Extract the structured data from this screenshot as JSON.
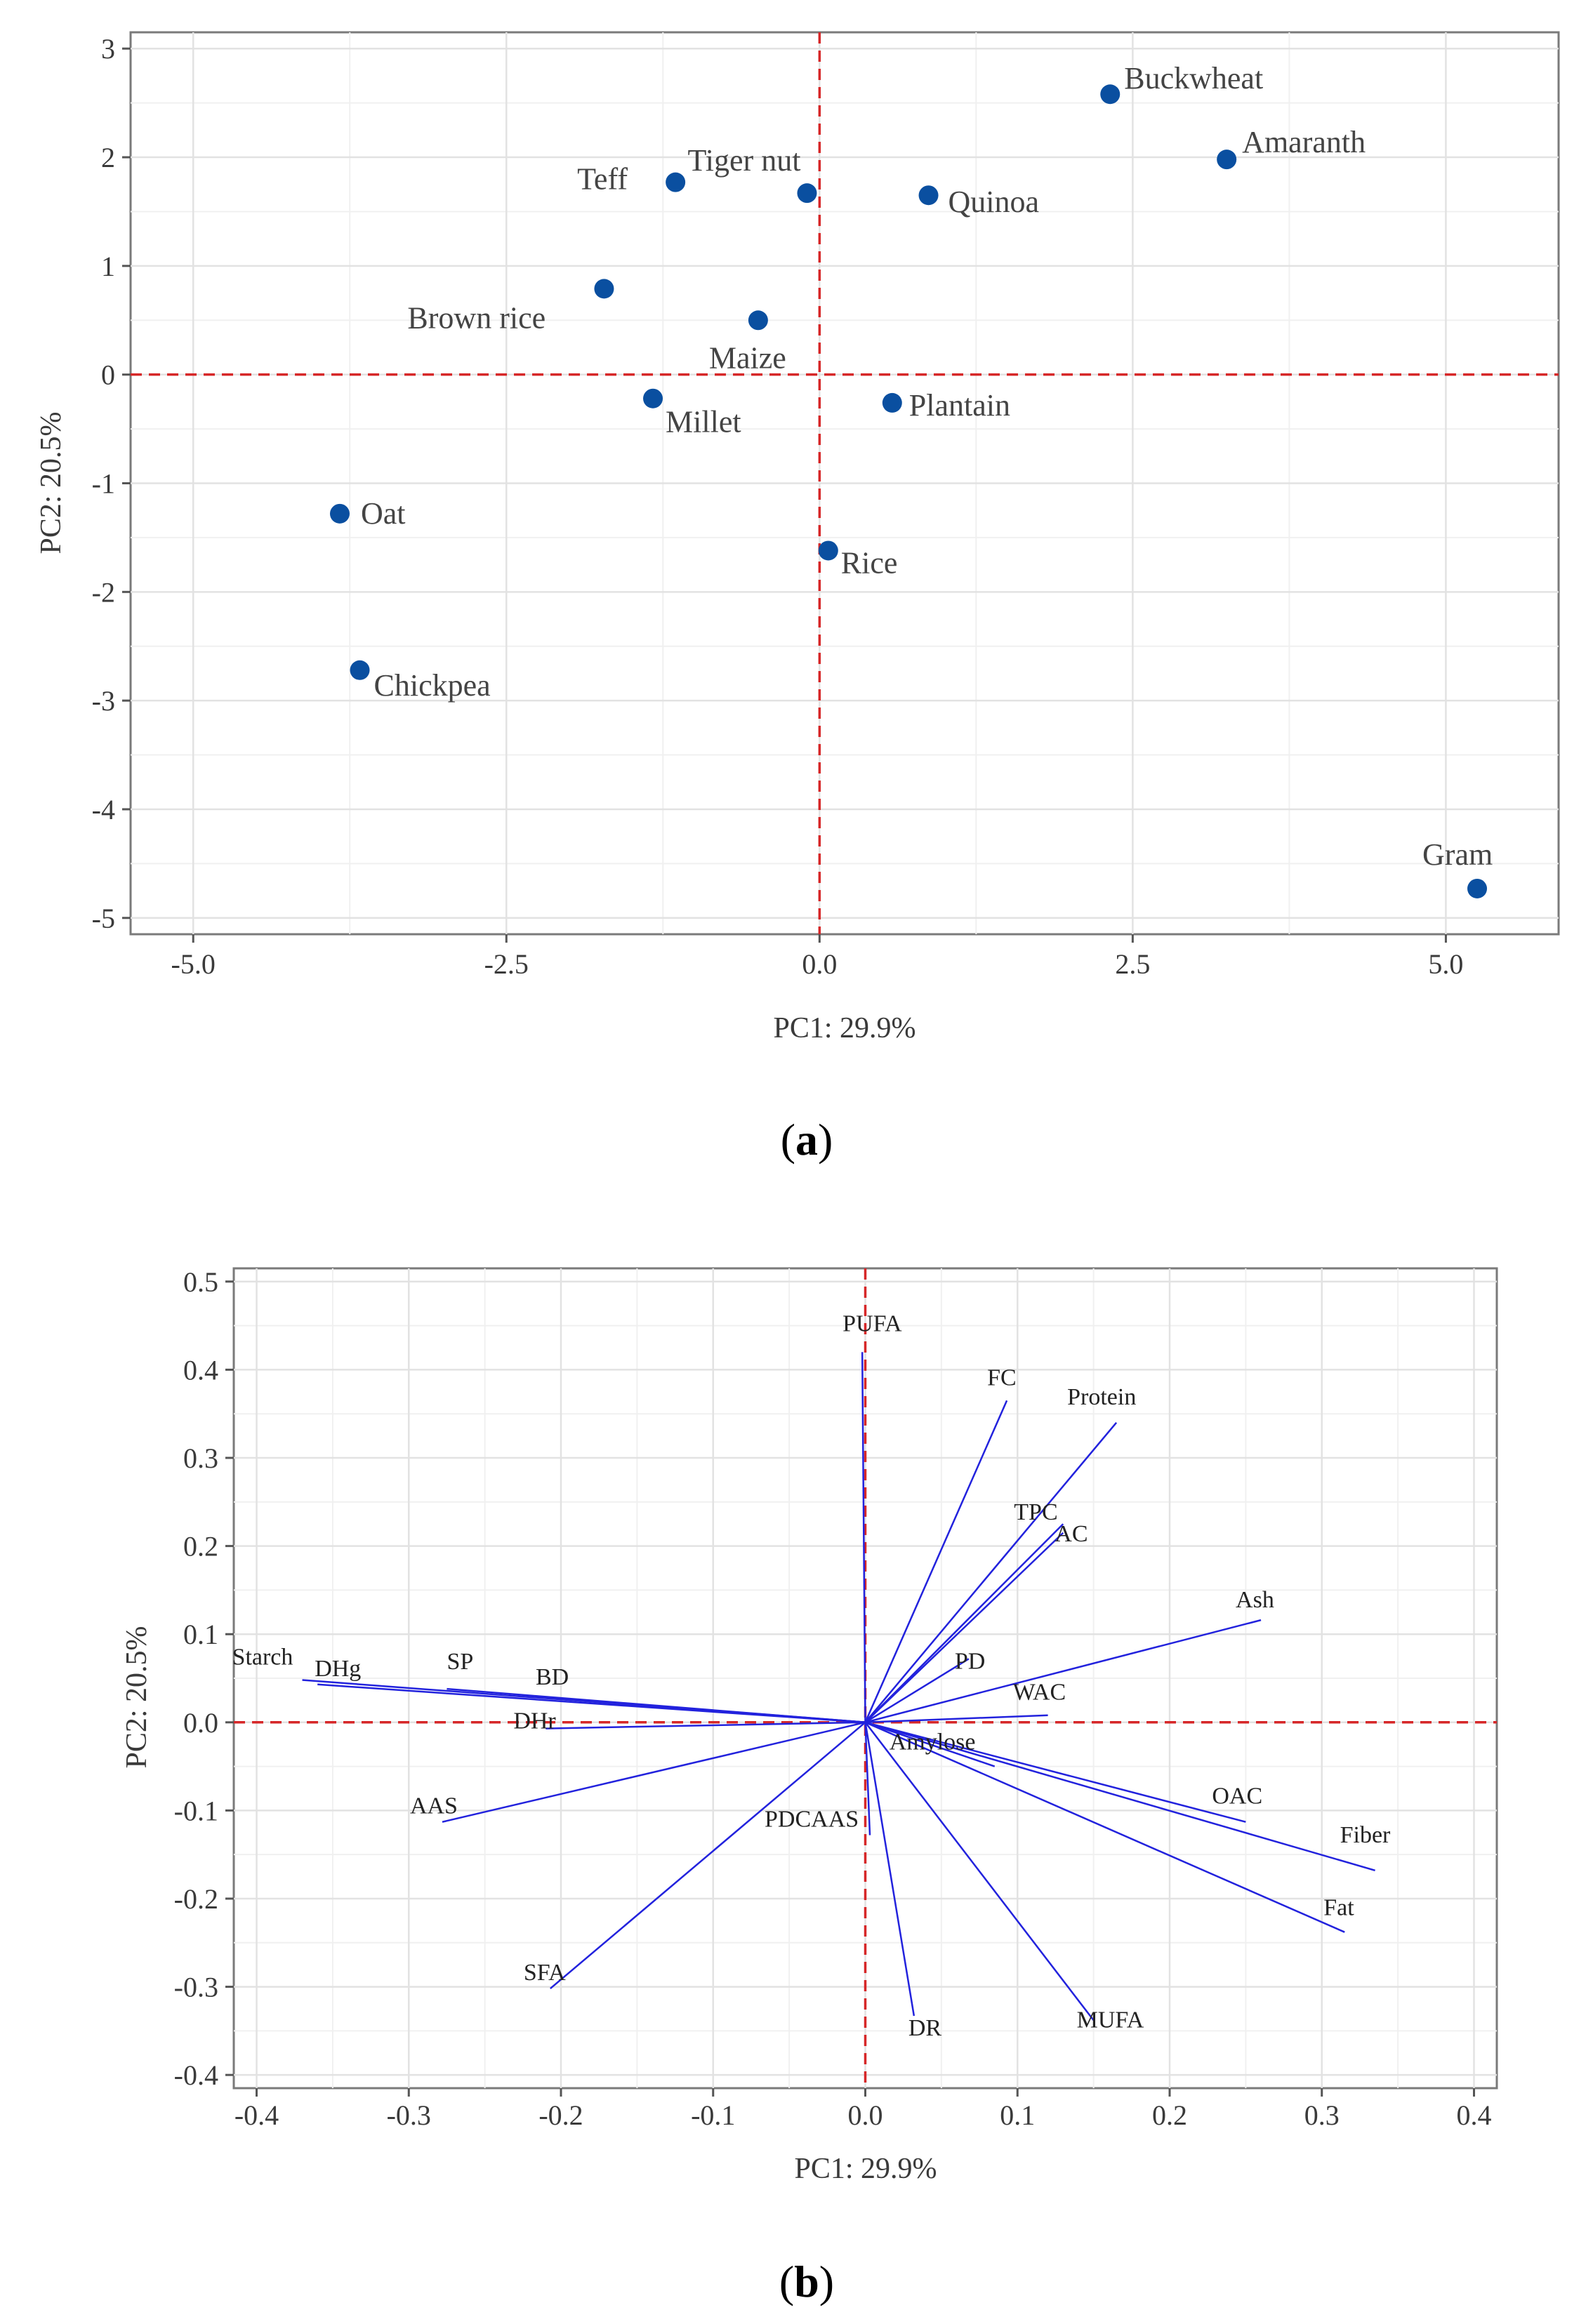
{
  "chart_data": [
    {
      "type": "scatter",
      "panel_label": "a",
      "xlabel": "PC1: 29.9%",
      "ylabel": "PC2: 20.5%",
      "xlim": [
        -5.5,
        5.9
      ],
      "ylim": [
        -5.15,
        3.15
      ],
      "xticks": [
        -5.0,
        -2.5,
        0.0,
        2.5,
        5.0
      ],
      "xtick_labels": [
        "-5.0",
        "-2.5",
        "0.0",
        "2.5",
        "5.0"
      ],
      "yticks": [
        -5,
        -4,
        -3,
        -2,
        -1,
        0,
        1,
        2,
        3
      ],
      "ytick_labels": [
        "-5",
        "-4",
        "-3",
        "-2",
        "-1",
        "0",
        "1",
        "2",
        "3"
      ],
      "grid": true,
      "reference_lines": {
        "x": 0,
        "y": 0,
        "style": "dashed",
        "color": "#d62728"
      },
      "point_color": "#0a4fa0",
      "points": [
        {
          "label": "Buckwheat",
          "x": 2.32,
          "y": 2.58
        },
        {
          "label": "Amaranth",
          "x": 3.25,
          "y": 1.98
        },
        {
          "label": "Tiger nut",
          "x": -0.1,
          "y": 1.67
        },
        {
          "label": "Teff",
          "x": -1.15,
          "y": 1.77
        },
        {
          "label": "Quinoa",
          "x": 0.87,
          "y": 1.65
        },
        {
          "label": "Brown rice",
          "x": -1.72,
          "y": 0.79
        },
        {
          "label": "Maize",
          "x": -0.49,
          "y": 0.5
        },
        {
          "label": "Millet",
          "x": -1.33,
          "y": -0.22
        },
        {
          "label": "Plantain",
          "x": 0.58,
          "y": -0.26
        },
        {
          "label": "Oat",
          "x": -3.83,
          "y": -1.28
        },
        {
          "label": "Rice",
          "x": 0.07,
          "y": -1.62
        },
        {
          "label": "Chickpea",
          "x": -3.67,
          "y": -2.72
        },
        {
          "label": "Gram",
          "x": 5.25,
          "y": -4.73
        }
      ]
    },
    {
      "type": "loadings",
      "panel_label": "b",
      "xlabel": "PC1: 29.9%",
      "ylabel": "PC2: 20.5%",
      "xlim": [
        -0.415,
        0.415
      ],
      "ylim": [
        -0.415,
        0.515
      ],
      "xticks": [
        -0.4,
        -0.3,
        -0.2,
        -0.1,
        0.0,
        0.1,
        0.2,
        0.3,
        0.4
      ],
      "xtick_labels": [
        "-0.4",
        "-0.3",
        "-0.2",
        "-0.1",
        "0.0",
        "0.1",
        "0.2",
        "0.3",
        "0.4"
      ],
      "yticks": [
        -0.4,
        -0.3,
        -0.2,
        -0.1,
        0.0,
        0.1,
        0.2,
        0.3,
        0.4,
        0.5
      ],
      "ytick_labels": [
        "-0.4",
        "-0.3",
        "-0.2",
        "-0.1",
        "0.0",
        "0.1",
        "0.2",
        "0.3",
        "0.4",
        "0.5"
      ],
      "grid": true,
      "reference_lines": {
        "x": 0,
        "y": 0,
        "style": "dashed",
        "color": "#d62728"
      },
      "vector_color": "#2222dd",
      "vectors": [
        {
          "label": "PUFA",
          "x": -0.002,
          "y": 0.42
        },
        {
          "label": "FC",
          "x": 0.093,
          "y": 0.365
        },
        {
          "label": "Protein",
          "x": 0.165,
          "y": 0.34
        },
        {
          "label": "TPC",
          "x": 0.13,
          "y": 0.225
        },
        {
          "label": "AC",
          "x": 0.13,
          "y": 0.215
        },
        {
          "label": "Ash",
          "x": 0.26,
          "y": 0.116
        },
        {
          "label": "PD",
          "x": 0.068,
          "y": 0.072
        },
        {
          "label": "WAC",
          "x": 0.12,
          "y": 0.008
        },
        {
          "label": "Starch",
          "x": -0.37,
          "y": 0.048
        },
        {
          "label": "DHg",
          "x": -0.36,
          "y": 0.043
        },
        {
          "label": "SP",
          "x": -0.275,
          "y": 0.038
        },
        {
          "label": "BD",
          "x": -0.2,
          "y": 0.027
        },
        {
          "label": "DHr",
          "x": -0.21,
          "y": -0.007
        },
        {
          "label": "AAS",
          "x": -0.278,
          "y": -0.113
        },
        {
          "label": "SFA",
          "x": -0.207,
          "y": -0.302
        },
        {
          "label": "PDCAAS",
          "x": 0.003,
          "y": -0.128
        },
        {
          "label": "Amylose",
          "x": 0.085,
          "y": -0.05
        },
        {
          "label": "OAC",
          "x": 0.25,
          "y": -0.113
        },
        {
          "label": "Fiber",
          "x": 0.335,
          "y": -0.168
        },
        {
          "label": "Fat",
          "x": 0.315,
          "y": -0.238
        },
        {
          "label": "MUFA",
          "x": 0.15,
          "y": -0.338
        },
        {
          "label": "DR",
          "x": 0.032,
          "y": -0.333
        }
      ]
    }
  ]
}
